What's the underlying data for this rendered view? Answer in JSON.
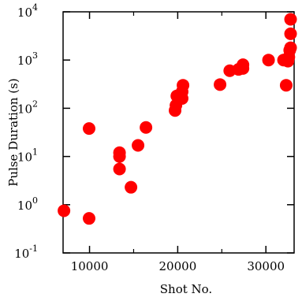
{
  "chart_data": {
    "type": "scatter",
    "xlabel": "Shot No.",
    "ylabel": "Pulse Duration (s)",
    "xlim": [
      7000,
      33200
    ],
    "ylim": [
      0.1,
      10000
    ],
    "y_scale": "log",
    "grid": false,
    "x_ticks": [
      10000,
      20000,
      30000
    ],
    "x_tick_labels": [
      "10000",
      "20000",
      "30000"
    ],
    "y_ticks": [
      {
        "value": 0.1,
        "base": "10",
        "exp": "-1"
      },
      {
        "value": 1,
        "base": "10",
        "exp": "0"
      },
      {
        "value": 10,
        "base": "10",
        "exp": "1"
      },
      {
        "value": 100,
        "base": "10",
        "exp": "2"
      },
      {
        "value": 1000,
        "base": "10",
        "exp": "3"
      },
      {
        "value": 10000,
        "base": "10",
        "exp": "4"
      }
    ],
    "marker_color": "#ff0000",
    "points": [
      {
        "x": 7100,
        "y": 0.75
      },
      {
        "x": 9950,
        "y": 0.52
      },
      {
        "x": 9950,
        "y": 38
      },
      {
        "x": 13400,
        "y": 5.5
      },
      {
        "x": 13400,
        "y": 10
      },
      {
        "x": 13400,
        "y": 12
      },
      {
        "x": 14700,
        "y": 2.3
      },
      {
        "x": 15500,
        "y": 17
      },
      {
        "x": 16400,
        "y": 40
      },
      {
        "x": 19700,
        "y": 90
      },
      {
        "x": 19800,
        "y": 115
      },
      {
        "x": 19900,
        "y": 180
      },
      {
        "x": 20500,
        "y": 160
      },
      {
        "x": 20500,
        "y": 220
      },
      {
        "x": 20600,
        "y": 300
      },
      {
        "x": 24800,
        "y": 310
      },
      {
        "x": 25900,
        "y": 600
      },
      {
        "x": 26900,
        "y": 640
      },
      {
        "x": 27400,
        "y": 670
      },
      {
        "x": 27400,
        "y": 800
      },
      {
        "x": 30300,
        "y": 1000
      },
      {
        "x": 32000,
        "y": 1000
      },
      {
        "x": 32300,
        "y": 300
      },
      {
        "x": 32500,
        "y": 950
      },
      {
        "x": 32600,
        "y": 1150
      },
      {
        "x": 32700,
        "y": 1600
      },
      {
        "x": 32800,
        "y": 1800
      },
      {
        "x": 32800,
        "y": 3500
      },
      {
        "x": 32800,
        "y": 7000
      }
    ]
  }
}
